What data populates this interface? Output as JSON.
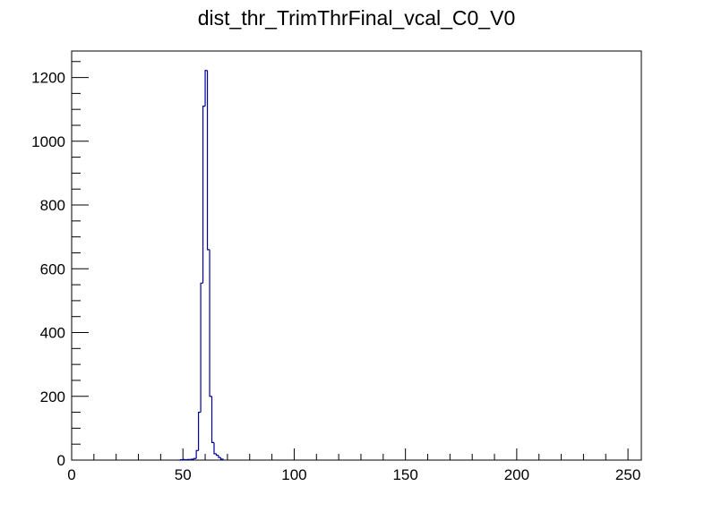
{
  "chart_data": {
    "type": "histogram",
    "title": "dist_thr_TrimThrFinal_vcal_C0_V0",
    "bins": [
      48,
      49,
      50,
      51,
      52,
      53,
      54,
      55,
      56,
      57,
      58,
      59,
      60,
      61,
      62,
      63,
      64,
      65,
      66,
      67,
      68
    ],
    "values": [
      0,
      1,
      2,
      1,
      2,
      2,
      3,
      5,
      30,
      150,
      555,
      1110,
      1222,
      660,
      200,
      55,
      20,
      15,
      8,
      3
    ],
    "color": "#000099",
    "xlim": [
      0,
      256
    ],
    "xticks": [
      0,
      50,
      100,
      150,
      200,
      250
    ],
    "xminorticks": [
      10,
      20,
      30,
      40,
      60,
      70,
      80,
      90,
      110,
      120,
      130,
      140,
      160,
      170,
      180,
      190,
      210,
      220,
      230,
      240
    ],
    "ylim": [
      0,
      1283
    ],
    "yticks": [
      0,
      200,
      400,
      600,
      800,
      1000,
      1200
    ],
    "yminorticks": [
      50,
      100,
      150,
      250,
      300,
      350,
      450,
      500,
      550,
      650,
      700,
      750,
      850,
      900,
      950,
      1050,
      1100,
      1150,
      1250
    ]
  }
}
